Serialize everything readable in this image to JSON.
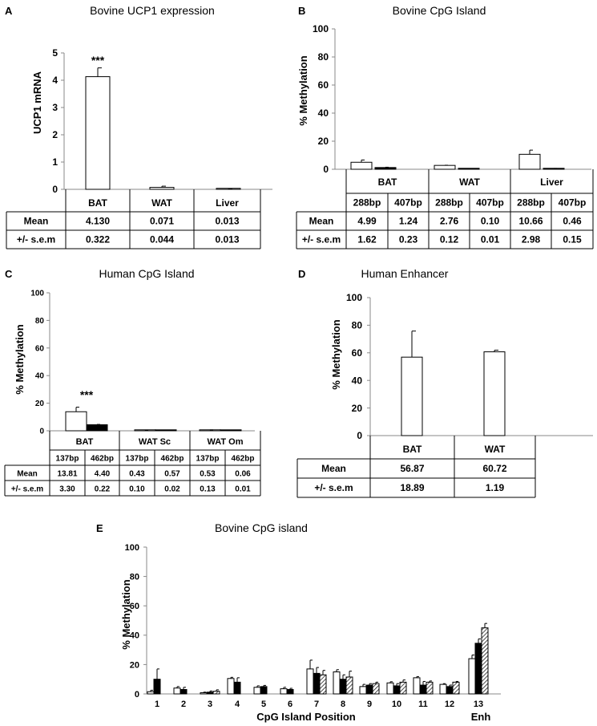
{
  "colors": {
    "ink": "#000000",
    "bar_open": "#ffffff",
    "bar_solid": "#000000",
    "axis": "#888888"
  },
  "chart_data": [
    {
      "panel": "A",
      "type": "bar",
      "title": "Bovine UCP1 expression",
      "ylabel": "UCP1 mRNA",
      "ylim": [
        0,
        5
      ],
      "yticks": [
        "0",
        "1",
        "2",
        "3",
        "4",
        "5"
      ],
      "categories": [
        "BAT",
        "WAT",
        "Liver"
      ],
      "series": [
        {
          "values": [
            4.13,
            0.071,
            0.013
          ],
          "errors": [
            0.322,
            0.044,
            0.013
          ],
          "fill": "open"
        }
      ],
      "annotation": "***",
      "table": {
        "header": [
          "BAT",
          "WAT",
          "Liver"
        ],
        "rows": [
          {
            "label": "Mean",
            "cells": [
              "4.130",
              "0.071",
              "0.013"
            ]
          },
          {
            "label": "+/- s.e.m",
            "cells": [
              "0.322",
              "0.044",
              "0.013"
            ]
          }
        ]
      }
    },
    {
      "panel": "B",
      "type": "bar",
      "title": "Bovine CpG Island",
      "ylabel": "% Methylation",
      "ylim": [
        0,
        100
      ],
      "yticks": [
        "0",
        "20",
        "40",
        "60",
        "80",
        "100"
      ],
      "categories": [
        "BAT",
        "WAT",
        "Liver"
      ],
      "series": [
        {
          "name": "288bp",
          "values": [
            4.99,
            2.76,
            10.66
          ],
          "errors": [
            1.62,
            0.12,
            2.98
          ],
          "fill": "open"
        },
        {
          "name": "407bp",
          "values": [
            1.24,
            0.1,
            0.46
          ],
          "errors": [
            0.23,
            0.01,
            0.15
          ],
          "fill": "solid"
        }
      ],
      "table": {
        "groups": [
          "BAT",
          "WAT",
          "Liver"
        ],
        "sub": [
          "288bp",
          "407bp",
          "288bp",
          "407bp",
          "288bp",
          "407bp"
        ],
        "rows": [
          {
            "label": "Mean",
            "cells": [
              "4.99",
              "1.24",
              "2.76",
              "0.10",
              "10.66",
              "0.46"
            ]
          },
          {
            "label": "+/- s.e.m",
            "cells": [
              "1.62",
              "0.23",
              "0.12",
              "0.01",
              "2.98",
              "0.15"
            ]
          }
        ]
      }
    },
    {
      "panel": "C",
      "type": "bar",
      "title": "Human CpG Island",
      "ylabel": "% Methylation",
      "ylim": [
        0,
        100
      ],
      "yticks": [
        "0",
        "20",
        "40",
        "60",
        "80",
        "100"
      ],
      "categories": [
        "BAT",
        "WAT Sc",
        "WAT Om"
      ],
      "series": [
        {
          "name": "137bp",
          "values": [
            13.81,
            0.43,
            0.53
          ],
          "errors": [
            3.3,
            0.1,
            0.13
          ],
          "fill": "open"
        },
        {
          "name": "462bp",
          "values": [
            4.4,
            0.57,
            0.06
          ],
          "errors": [
            0.22,
            0.02,
            0.01
          ],
          "fill": "solid"
        }
      ],
      "annotation": "***",
      "table": {
        "groups": [
          "BAT",
          "WAT Sc",
          "WAT Om"
        ],
        "sub": [
          "137bp",
          "462bp",
          "137bp",
          "462bp",
          "137bp",
          "462bp"
        ],
        "rows": [
          {
            "label": "Mean",
            "cells": [
              "13.81",
              "4.40",
              "0.43",
              "0.57",
              "0.53",
              "0.06"
            ]
          },
          {
            "label": "+/- s.e.m",
            "cells": [
              "3.30",
              "0.22",
              "0.10",
              "0.02",
              "0.13",
              "0.01"
            ]
          }
        ]
      }
    },
    {
      "panel": "D",
      "type": "bar",
      "title": "Human Enhancer",
      "ylabel": "% Methylation",
      "ylim": [
        0,
        100
      ],
      "yticks": [
        "0",
        "20",
        "40",
        "60",
        "80",
        "100"
      ],
      "categories": [
        "BAT",
        "WAT"
      ],
      "series": [
        {
          "values": [
            56.87,
            60.72
          ],
          "errors": [
            18.89,
            1.19
          ],
          "fill": "open"
        }
      ],
      "table": {
        "header": [
          "BAT",
          "WAT"
        ],
        "rows": [
          {
            "label": "Mean",
            "cells": [
              "56.87",
              "60.72"
            ]
          },
          {
            "label": "+/- s.e.m",
            "cells": [
              "18.89",
              "1.19"
            ]
          }
        ]
      }
    },
    {
      "panel": "E",
      "type": "bar",
      "title": "Bovine CpG island",
      "ylabel": "% Methylation",
      "xlabel": "CpG Island Position",
      "xlabel_extra": "Enh",
      "ylim": [
        0,
        100
      ],
      "yticks": [
        "0",
        "20",
        "40",
        "60",
        "80",
        "100"
      ],
      "categories": [
        "1",
        "2",
        "3",
        "4",
        "5",
        "6",
        "7",
        "8",
        "9",
        "10",
        "11",
        "12",
        "13"
      ],
      "series": [
        {
          "fill": "open",
          "values": [
            1.5,
            4,
            0.8,
            10.5,
            4.5,
            3.5,
            17,
            15,
            5,
            7.5,
            11,
            6.5,
            24
          ],
          "errors": [
            1,
            1,
            0.4,
            0.8,
            1,
            1,
            6,
            1.5,
            1.5,
            0.8,
            0.8,
            0.5,
            2.5
          ]
        },
        {
          "fill": "solid",
          "values": [
            10,
            3,
            1.2,
            8,
            5,
            3,
            14,
            10,
            6,
            5.5,
            6,
            5,
            34.5
          ],
          "errors": [
            7,
            1.5,
            0.8,
            3,
            0.8,
            0.8,
            4,
            3,
            1,
            1.5,
            2.5,
            1,
            3
          ]
        },
        {
          "fill": "hatch",
          "values": [
            null,
            null,
            1.8,
            null,
            null,
            null,
            13,
            11.5,
            7,
            8,
            8,
            8,
            45
          ],
          "errors": [
            null,
            null,
            1,
            null,
            null,
            null,
            3,
            4,
            1,
            1.5,
            0.8,
            0.5,
            3
          ]
        }
      ]
    }
  ]
}
